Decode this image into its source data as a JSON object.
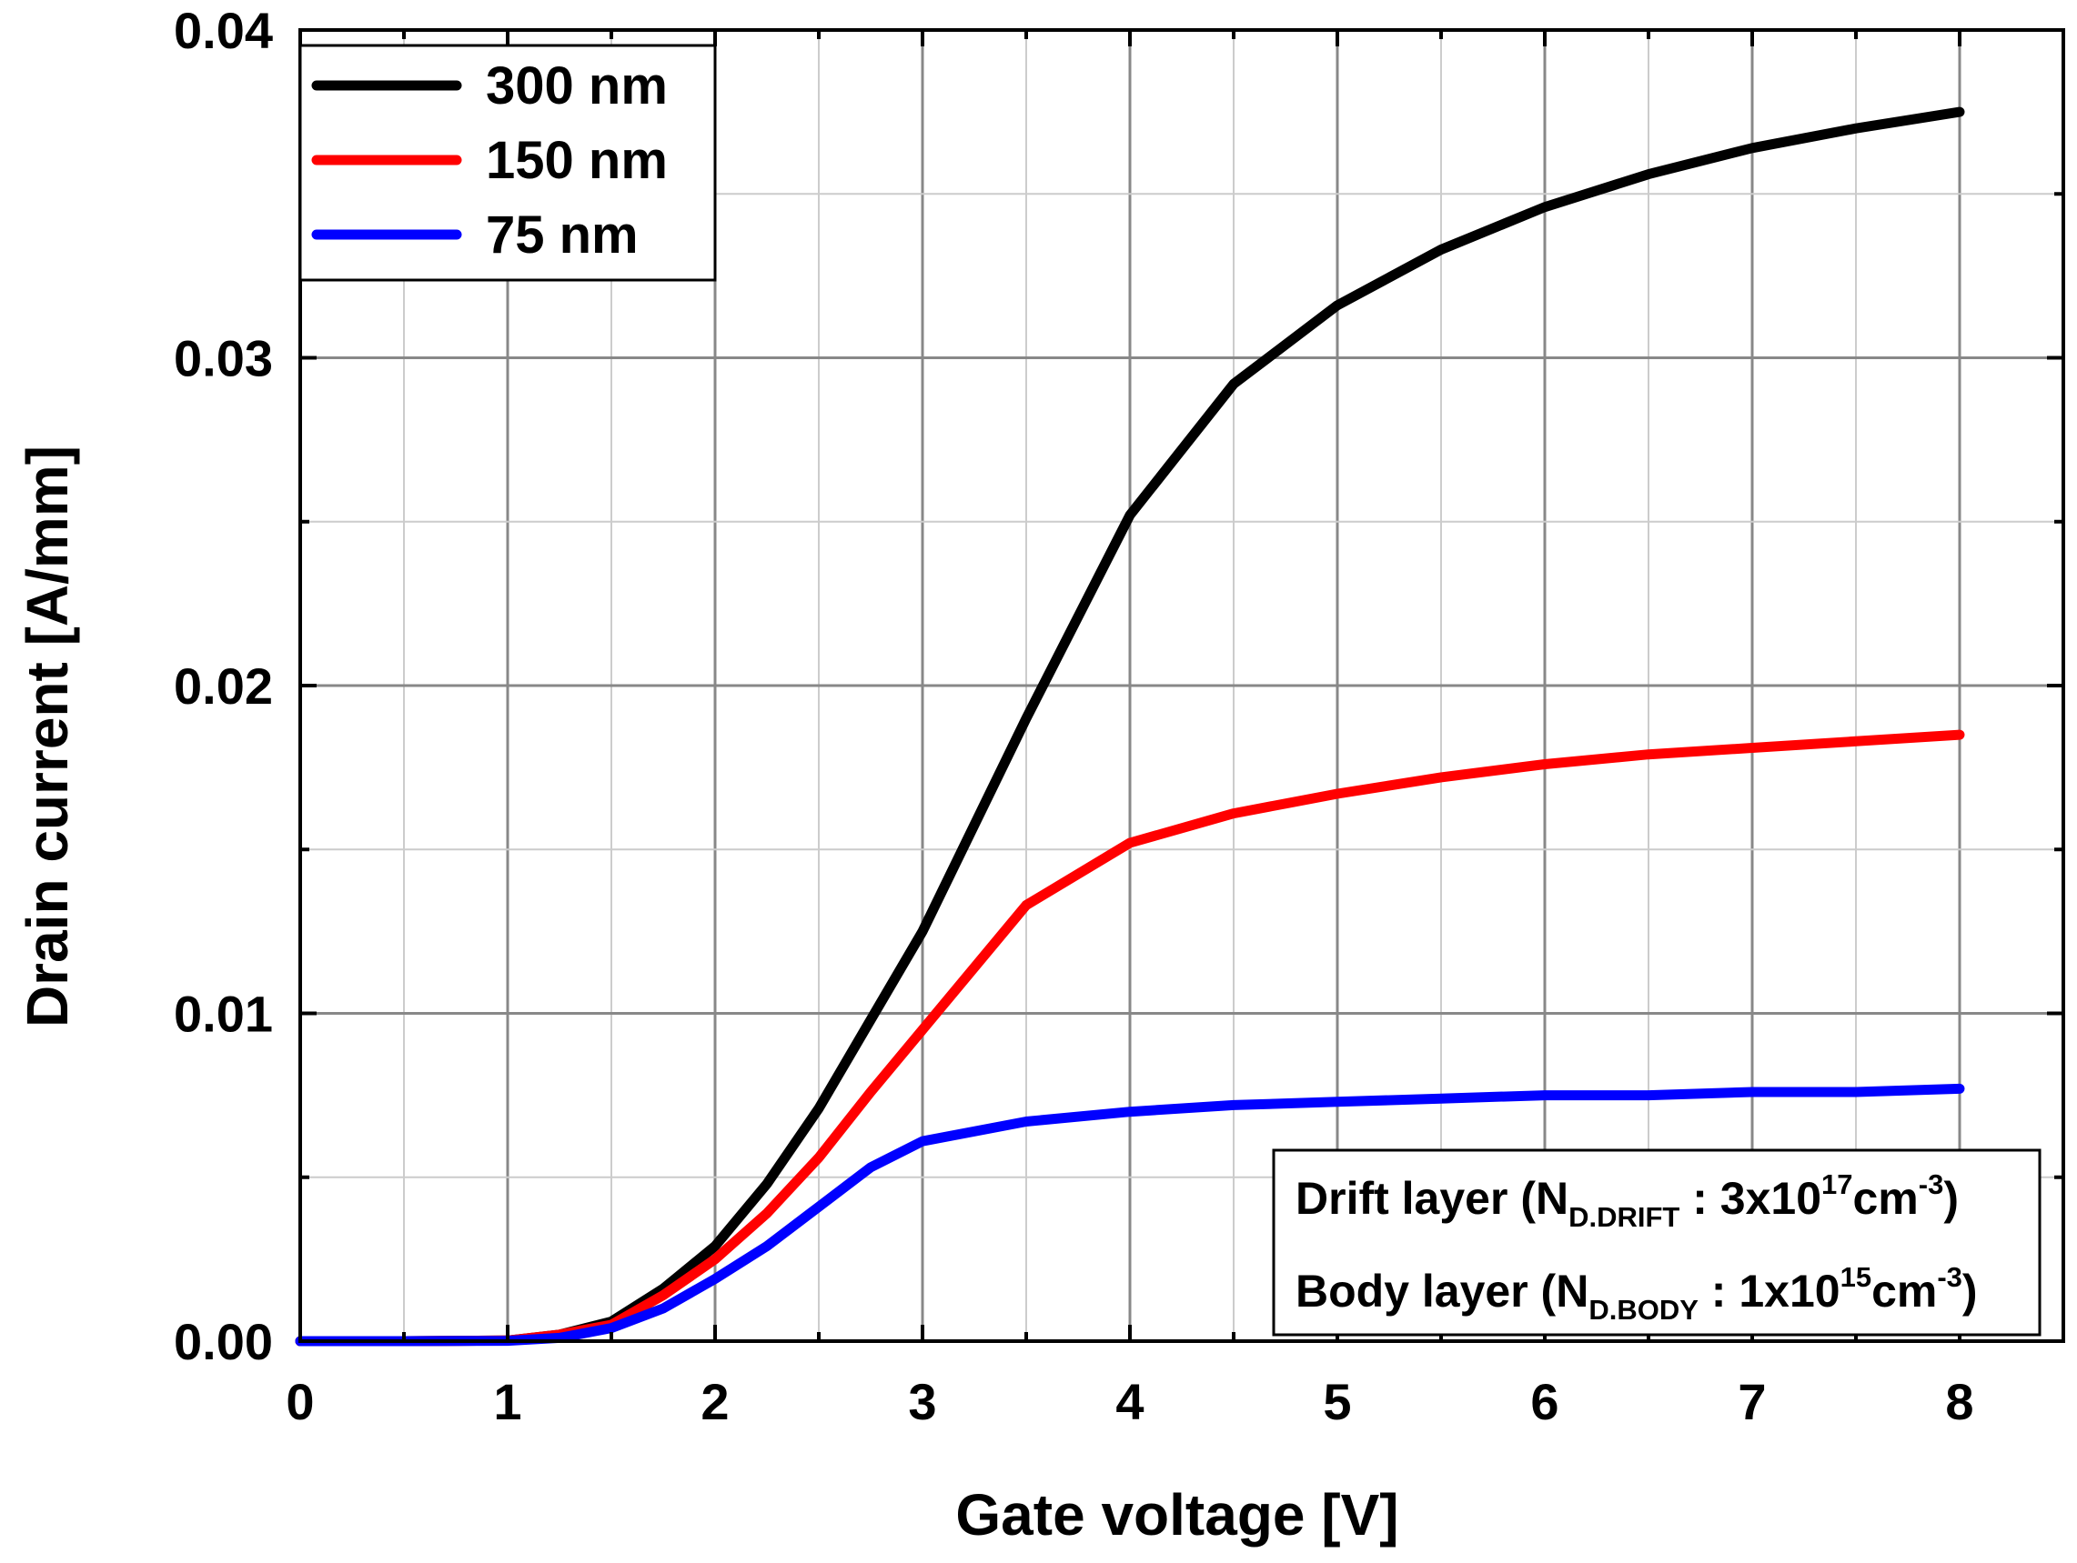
{
  "chart_data": {
    "type": "line",
    "xlabel": "Gate voltage [V]",
    "ylabel": "Drain current [A/mm]",
    "xlim": [
      0,
      8.5
    ],
    "ylim": [
      0,
      0.04
    ],
    "xticks": [
      0,
      1,
      2,
      3,
      4,
      5,
      6,
      7,
      8
    ],
    "xtick_labels": [
      "0",
      "1",
      "2",
      "3",
      "4",
      "5",
      "6",
      "7",
      "8"
    ],
    "yticks": [
      0,
      0.01,
      0.02,
      0.03,
      0.04
    ],
    "ytick_labels": [
      "0.00",
      "0.01",
      "0.02",
      "0.03",
      "0.04"
    ],
    "grid": true,
    "legend_position": "top-left",
    "series": [
      {
        "name": "300 nm",
        "color": "#000000",
        "x": [
          0,
          0.5,
          1,
          1.25,
          1.5,
          1.75,
          2,
          2.25,
          2.5,
          2.75,
          3,
          3.5,
          4,
          4.5,
          5,
          5.5,
          6,
          6.5,
          7,
          7.5,
          8
        ],
        "y": [
          0,
          0,
          2e-05,
          0.0002,
          0.0006,
          0.0016,
          0.0029,
          0.0048,
          0.0071,
          0.0098,
          0.0125,
          0.019,
          0.0252,
          0.0292,
          0.0316,
          0.0333,
          0.0346,
          0.0356,
          0.0364,
          0.037,
          0.0375
        ]
      },
      {
        "name": "150 nm",
        "color": "#ff0000",
        "x": [
          0,
          0.5,
          1,
          1.25,
          1.5,
          1.75,
          2,
          2.25,
          2.5,
          2.75,
          3,
          3.5,
          4,
          4.5,
          5,
          5.5,
          6,
          6.5,
          7,
          7.5,
          8
        ],
        "y": [
          0,
          0,
          2e-05,
          0.0002,
          0.0005,
          0.0014,
          0.0025,
          0.0039,
          0.0056,
          0.0076,
          0.0095,
          0.0133,
          0.0152,
          0.0161,
          0.0167,
          0.0172,
          0.0176,
          0.0179,
          0.0181,
          0.0183,
          0.0185
        ]
      },
      {
        "name": "75 nm",
        "color": "#0000ff",
        "x": [
          0,
          0.5,
          1,
          1.25,
          1.5,
          1.75,
          2,
          2.25,
          2.5,
          2.75,
          3,
          3.5,
          4,
          4.5,
          5,
          5.5,
          6,
          6.5,
          7,
          7.5,
          8
        ],
        "y": [
          0,
          0,
          1e-05,
          0.0001,
          0.0004,
          0.001,
          0.0019,
          0.0029,
          0.0041,
          0.0053,
          0.0061,
          0.0067,
          0.007,
          0.0072,
          0.0073,
          0.0074,
          0.0075,
          0.0075,
          0.0076,
          0.0076,
          0.0077
        ]
      }
    ],
    "annotation": {
      "line1": {
        "prefix": "Drift layer (N",
        "sub": "D.DRIFT",
        "middle": " : 3x10",
        "sup": "17",
        "unit": "cm",
        "unit_sup": "-3",
        "suffix": ")"
      },
      "line2": {
        "prefix": "Body layer (N",
        "sub": "D.BODY",
        "middle": " : 1x10",
        "sup": "15",
        "unit": "cm",
        "unit_sup": "-3",
        "suffix": ")"
      }
    }
  }
}
